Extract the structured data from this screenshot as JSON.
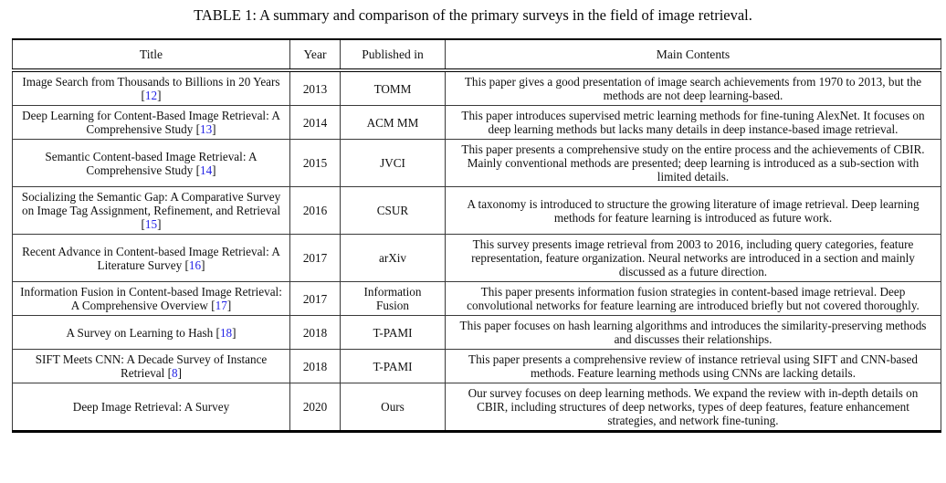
{
  "caption": "TABLE 1: A summary and comparison of the primary surveys in the field of image retrieval.",
  "colors": {
    "citation_link": "#2323e6",
    "border": "#000000",
    "text": "#101010"
  },
  "table": {
    "columns": [
      "Title",
      "Year",
      "Published in",
      "Main Contents"
    ],
    "rows": [
      {
        "title": "Image Search from Thousands to Billions in 20 Years",
        "ref": "12",
        "year": "2013",
        "published_in": "TOMM",
        "main_contents": "This paper gives a good presentation of image search achievements from 1970 to 2013, but the methods are not deep learning-based."
      },
      {
        "title": "Deep Learning for Content-Based Image Retrieval: A Comprehensive Study",
        "ref": "13",
        "year": "2014",
        "published_in": "ACM MM",
        "main_contents": "This paper introduces supervised metric learning methods for fine-tuning AlexNet. It focuses on deep learning methods but lacks many details in deep instance-based image retrieval."
      },
      {
        "title": "Semantic Content-based Image Retrieval: A Comprehensive Study",
        "ref": "14",
        "year": "2015",
        "published_in": "JVCI",
        "main_contents": "This paper presents a comprehensive study on the entire process and the achievements of CBIR. Mainly conventional methods are presented; deep learning is introduced as a sub-section with limited details."
      },
      {
        "title": "Socializing the Semantic Gap: A Comparative Survey on Image Tag Assignment, Refinement, and Retrieval",
        "ref": "15",
        "year": "2016",
        "published_in": "CSUR",
        "main_contents": "A taxonomy is introduced to structure the growing literature of image retrieval. Deep learning methods for feature learning is introduced as future work."
      },
      {
        "title": "Recent Advance in Content-based Image Retrieval: A Literature Survey",
        "ref": "16",
        "year": "2017",
        "published_in": "arXiv",
        "main_contents": "This survey presents image retrieval from 2003 to 2016, including query categories, feature representation, feature organization. Neural networks are introduced in a section and mainly discussed as a future direction."
      },
      {
        "title": "Information Fusion in Content-based Image Retrieval: A Comprehensive Overview",
        "ref": "17",
        "year": "2017",
        "published_in": "Information Fusion",
        "main_contents": "This paper presents information fusion strategies in content-based image retrieval. Deep convolutional networks for feature learning are introduced briefly but not covered thoroughly."
      },
      {
        "title": "A Survey on Learning to Hash",
        "ref": "18",
        "year": "2018",
        "published_in": "T-PAMI",
        "main_contents": "This paper focuses on hash learning algorithms and introduces the similarity-preserving methods and discusses their relationships."
      },
      {
        "title": "SIFT Meets CNN: A Decade Survey of Instance Retrieval",
        "ref": "8",
        "year": "2018",
        "published_in": "T-PAMI",
        "main_contents": "This paper presents a comprehensive review of instance retrieval using SIFT and CNN-based methods. Feature learning methods using CNNs are lacking details."
      },
      {
        "title": "Deep Image Retrieval: A Survey",
        "ref": null,
        "year": "2020",
        "published_in": "Ours",
        "main_contents": "Our survey focuses on deep learning methods. We expand the review with in-depth details on CBIR, including structures of deep networks, types of deep features, feature enhancement strategies, and network fine-tuning."
      }
    ]
  }
}
